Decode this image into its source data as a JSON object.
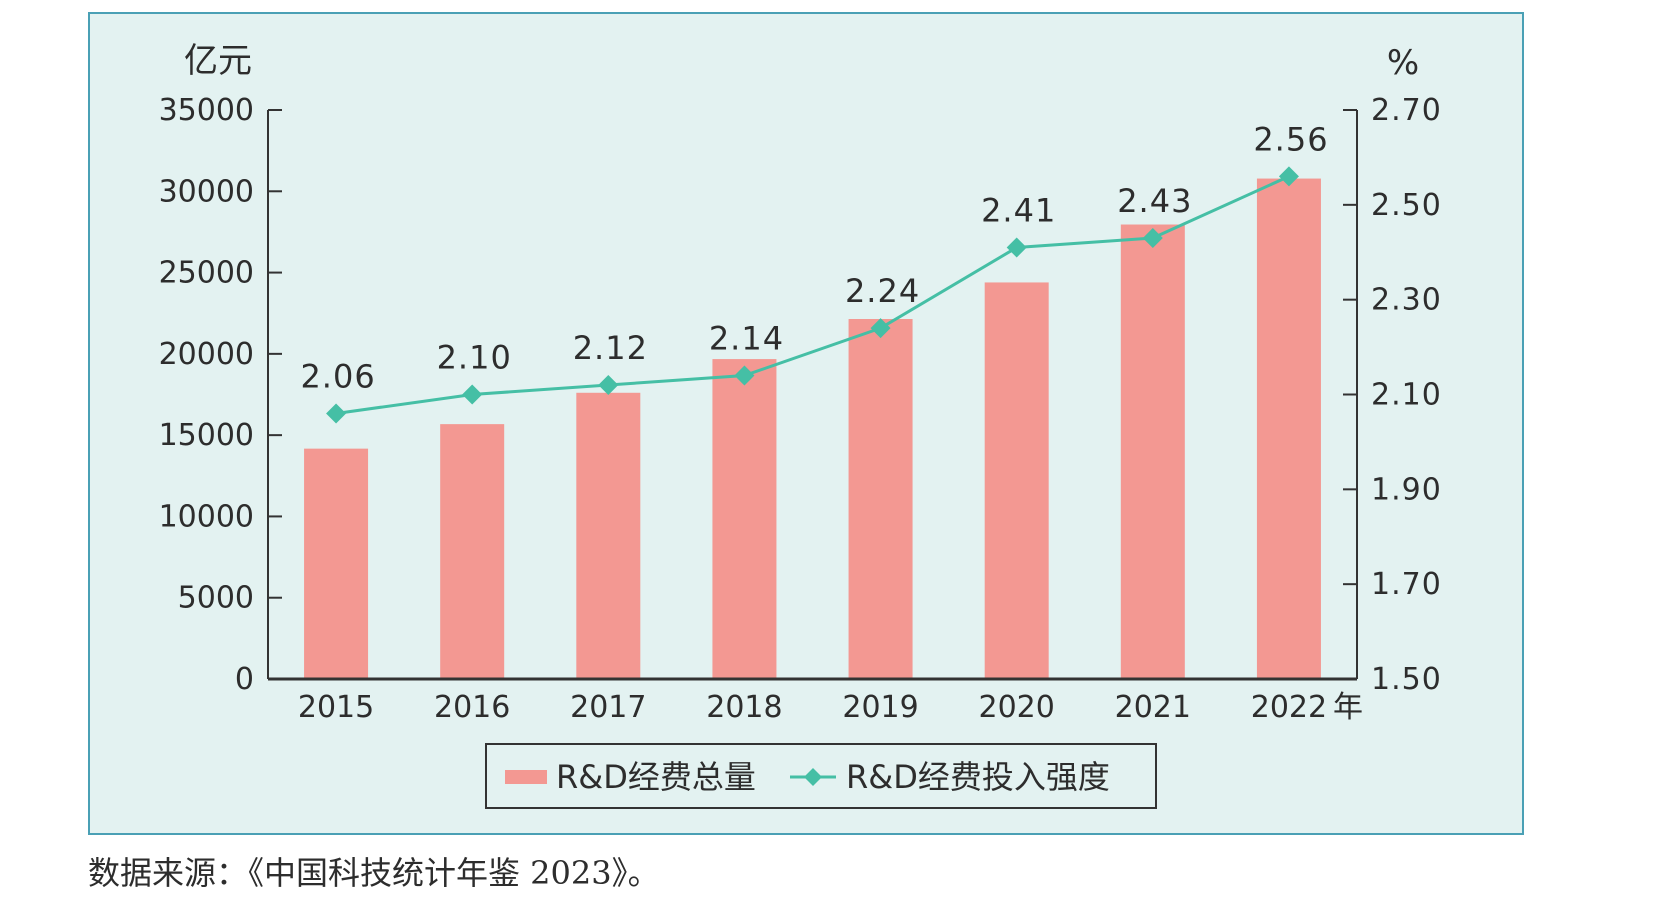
{
  "source_note": "数据来源：《中国科技统计年鉴 2023》。",
  "colors": {
    "bar": "#f39892",
    "line": "#45bfa5",
    "frame_bg": "#e3f2f1",
    "frame_border": "#4aa0b5"
  },
  "chart_data": {
    "type": "bar",
    "categories": [
      "2015",
      "2016",
      "2017",
      "2018",
      "2019",
      "2020",
      "2021",
      "2022"
    ],
    "xlabel": "年",
    "ylabel": "亿元",
    "ylabel_right": "%",
    "ylim": [
      0,
      35000
    ],
    "yticks": [
      "0",
      "5000",
      "10000",
      "15000",
      "20000",
      "25000",
      "30000",
      "35000"
    ],
    "ylim_right": [
      1.5,
      2.7
    ],
    "yticks_right": [
      "1.50",
      "1.70",
      "1.90",
      "2.10",
      "2.30",
      "2.50",
      "2.70"
    ],
    "series": [
      {
        "name": "R&D经费总量",
        "type": "bar",
        "axis": "left",
        "values": [
          14170,
          15677,
          17606,
          19678,
          22144,
          24393,
          27956,
          30783
        ]
      },
      {
        "name": "R&D经费投入强度",
        "type": "line",
        "axis": "right",
        "values": [
          2.06,
          2.1,
          2.12,
          2.14,
          2.24,
          2.41,
          2.43,
          2.56
        ],
        "labels": [
          "2.06",
          "2.10",
          "2.12",
          "2.14",
          "2.24",
          "2.41",
          "2.43",
          "2.56"
        ]
      }
    ],
    "legend": "bottom-center",
    "grid": false
  }
}
